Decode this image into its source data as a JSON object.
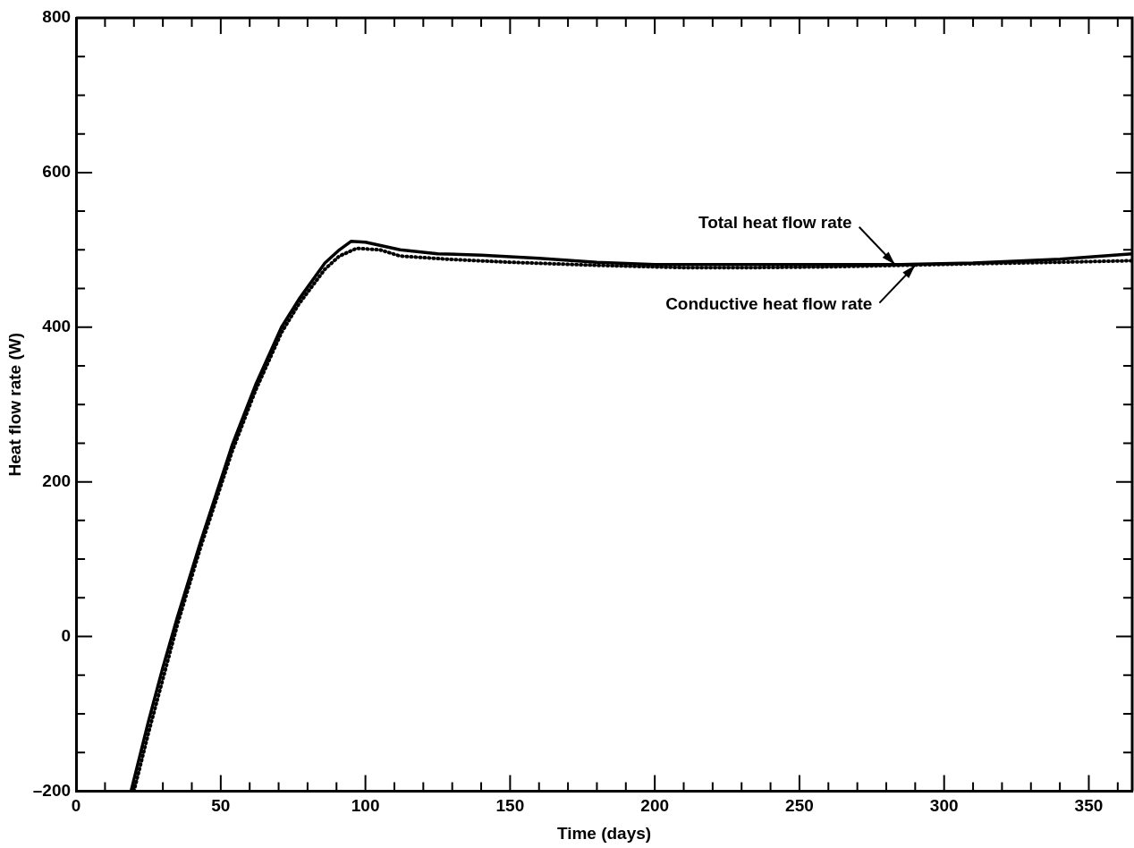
{
  "chart_data": {
    "type": "line",
    "xlabel": "Time (days)",
    "ylabel": "Heat flow rate (W)",
    "xlim": [
      0,
      365
    ],
    "xticks": [
      0,
      {
        "value": 10,
        "label": null
      },
      {
        "value": 20,
        "label": null
      },
      {
        "value": 30,
        "label": null
      },
      {
        "value": 40,
        "label": null
      },
      50,
      {
        "value": 60,
        "label": null
      },
      {
        "value": 70,
        "label": null
      },
      {
        "value": 80,
        "label": null
      },
      {
        "value": 90,
        "label": null
      },
      100,
      {
        "value": 110,
        "label": null
      },
      {
        "value": 120,
        "label": null
      },
      {
        "value": 130,
        "label": null
      },
      {
        "value": 140,
        "label": null
      },
      150,
      {
        "value": 160,
        "label": null
      },
      {
        "value": 170,
        "label": null
      },
      {
        "value": 180,
        "label": null
      },
      {
        "value": 190,
        "label": null
      },
      200,
      {
        "value": 210,
        "label": null
      },
      {
        "value": 220,
        "label": null
      },
      {
        "value": 230,
        "label": null
      },
      {
        "value": 240,
        "label": null
      },
      250,
      {
        "value": 260,
        "label": null
      },
      {
        "value": 270,
        "label": null
      },
      {
        "value": 280,
        "label": null
      },
      {
        "value": 290,
        "label": null
      },
      300,
      {
        "value": 310,
        "label": null
      },
      {
        "value": 320,
        "label": null
      },
      {
        "value": 330,
        "label": null
      },
      {
        "value": 340,
        "label": null
      },
      350,
      {
        "value": 360,
        "label": null
      }
    ],
    "ylim": [
      -200,
      800
    ],
    "yticks": [
      {
        "value": -200,
        "label": "–200"
      },
      {
        "value": -150,
        "label": null
      },
      {
        "value": -100,
        "label": null
      },
      {
        "value": -50,
        "label": null
      },
      0,
      {
        "value": 50,
        "label": null
      },
      {
        "value": 100,
        "label": null
      },
      {
        "value": 150,
        "label": null
      },
      200,
      {
        "value": 250,
        "label": null
      },
      {
        "value": 300,
        "label": null
      },
      {
        "value": 350,
        "label": null
      },
      400,
      {
        "value": 450,
        "label": null
      },
      {
        "value": 500,
        "label": null
      },
      {
        "value": 550,
        "label": null
      },
      600,
      {
        "value": 650,
        "label": null
      },
      {
        "value": 700,
        "label": null
      },
      {
        "value": 750,
        "label": null
      },
      800
    ],
    "grid": false,
    "legend": false,
    "marker": "none",
    "series": [
      {
        "color": "#000000",
        "line_style": "solid",
        "x": [
          19,
          25,
          30,
          35,
          43,
          54,
          62,
          71,
          77,
          86,
          91,
          95,
          100,
          112,
          125,
          140,
          160,
          180,
          200,
          234,
          260,
          285,
          310,
          340,
          365
        ],
        "values": [
          -200,
          -110,
          -40,
          25,
          122,
          248,
          325,
          400,
          436,
          483,
          500,
          511,
          510,
          500,
          495,
          493,
          489,
          484,
          481,
          481,
          481,
          481,
          483,
          488,
          495
        ]
      },
      {
        "color": "#000000",
        "line_style": "dotted",
        "x": [
          20,
          25,
          30,
          35,
          43,
          54,
          62,
          71,
          77,
          86,
          91,
          97,
          105,
          112,
          128,
          150,
          180,
          210,
          234,
          260,
          285,
          310,
          340,
          365
        ],
        "values": [
          -200,
          -125,
          -55,
          15,
          115,
          240,
          318,
          393,
          430,
          475,
          492,
          502,
          500,
          492,
          488,
          484,
          480,
          477,
          477,
          478,
          480,
          482,
          484,
          486
        ]
      }
    ],
    "annotations": [
      {
        "text": "Total heat flow rate",
        "x": 283,
        "y": 481
      },
      {
        "text": "Conductive heat flow rate",
        "x": 290,
        "y": 480
      }
    ]
  }
}
